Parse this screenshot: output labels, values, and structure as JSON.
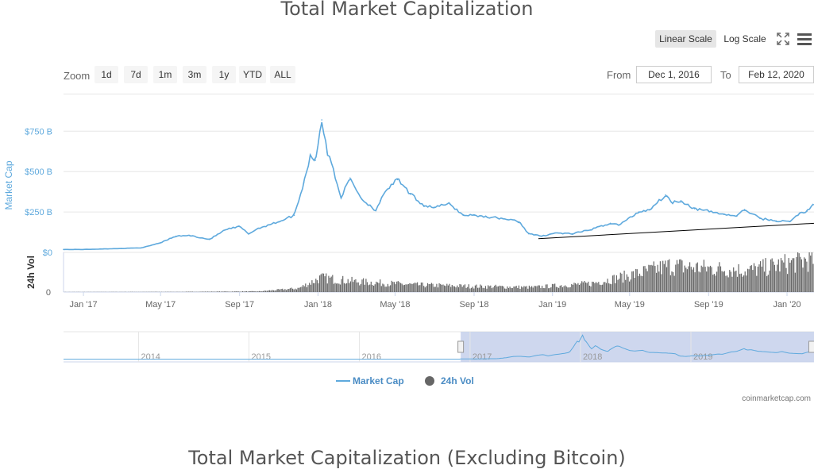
{
  "title": "Total Market Capitalization",
  "subtitle_next_chart": "Total Market Capitalization (Excluding Bitcoin)",
  "scale_buttons": {
    "linear": "Linear Scale",
    "log": "Log Scale",
    "active": "linear"
  },
  "zoom": {
    "label": "Zoom",
    "buttons": [
      "1d",
      "7d",
      "1m",
      "3m",
      "1y",
      "YTD",
      "ALL"
    ]
  },
  "range": {
    "from_label": "From",
    "from_value": "Dec 1, 2016",
    "to_label": "To",
    "to_value": "Feb 12, 2020"
  },
  "icons": {
    "fullscreen": "fullscreen-icon",
    "menu": "hamburger-menu-icon"
  },
  "credit": "coinmarketcap.com",
  "colors": {
    "market_cap": "#5ea9dd",
    "volume": "#666666",
    "navigator_fill": "#c5d0eb",
    "title": "#555555",
    "trendline": "#000000"
  },
  "chart_data": {
    "type": "line",
    "title": "Total Market Capitalization",
    "x_axis": {
      "labels": [
        "Jan '17",
        "May '17",
        "Sep '17",
        "Jan '18",
        "May '18",
        "Sep '18",
        "Jan '19",
        "May '19",
        "Sep '19",
        "Jan '20"
      ],
      "range": [
        "2016-12-01",
        "2020-02-12"
      ]
    },
    "y_axis": {
      "label": "Market Cap",
      "tick_labels": [
        "$0",
        "$250 B",
        "$500 B",
        "$750 B"
      ],
      "ticks": [
        0,
        250,
        500,
        750
      ],
      "unit": "billion USD",
      "ylim": [
        0,
        830
      ]
    },
    "volume_axis": {
      "label": "24h Vol",
      "tick_labels": [
        "0"
      ]
    },
    "legend": [
      "Market Cap",
      "24h Vol"
    ],
    "series": [
      {
        "name": "Market Cap",
        "x": [
          "2016-12-01",
          "2017-01-01",
          "2017-02-01",
          "2017-03-01",
          "2017-04-01",
          "2017-05-01",
          "2017-05-25",
          "2017-06-15",
          "2017-07-16",
          "2017-08-10",
          "2017-09-01",
          "2017-09-15",
          "2017-10-01",
          "2017-11-01",
          "2017-11-25",
          "2017-12-10",
          "2017-12-20",
          "2017-12-28",
          "2018-01-07",
          "2018-01-15",
          "2018-01-20",
          "2018-02-06",
          "2018-02-20",
          "2018-03-10",
          "2018-04-01",
          "2018-04-08",
          "2018-04-25",
          "2018-05-05",
          "2018-05-25",
          "2018-06-15",
          "2018-07-01",
          "2018-07-25",
          "2018-08-15",
          "2018-09-01",
          "2018-09-20",
          "2018-10-15",
          "2018-11-10",
          "2018-11-25",
          "2018-12-15",
          "2019-01-05",
          "2019-02-01",
          "2019-03-01",
          "2019-04-01",
          "2019-04-15",
          "2019-05-15",
          "2019-06-01",
          "2019-06-26",
          "2019-07-05",
          "2019-07-20",
          "2019-08-10",
          "2019-09-01",
          "2019-09-25",
          "2019-10-15",
          "2019-10-27",
          "2019-11-20",
          "2019-12-15",
          "2020-01-05",
          "2020-01-20",
          "2020-02-01",
          "2020-02-12"
        ],
        "values": [
          18,
          18,
          21,
          24,
          28,
          60,
          100,
          105,
          80,
          140,
          160,
          115,
          150,
          190,
          230,
          430,
          600,
          570,
          820,
          620,
          580,
          340,
          460,
          330,
          260,
          320,
          420,
          450,
          360,
          290,
          280,
          300,
          230,
          230,
          220,
          210,
          190,
          115,
          100,
          120,
          115,
          140,
          180,
          170,
          250,
          265,
          355,
          310,
          320,
          270,
          255,
          235,
          225,
          265,
          210,
          195,
          190,
          240,
          255,
          295
        ]
      },
      {
        "name": "24h Vol",
        "x": [
          "2016-12-01",
          "2017-06-01",
          "2017-10-01",
          "2017-12-01",
          "2018-01-05",
          "2018-03-01",
          "2018-06-01",
          "2018-09-01",
          "2018-12-01",
          "2019-03-01",
          "2019-05-01",
          "2019-07-01",
          "2019-09-01",
          "2019-11-01",
          "2020-01-01",
          "2020-02-12"
        ],
        "values": [
          0.2,
          0.5,
          1.5,
          8,
          30,
          22,
          15,
          12,
          10,
          18,
          35,
          55,
          50,
          45,
          60,
          70
        ]
      }
    ],
    "annotations": [
      {
        "type": "trendline",
        "from": [
          "2018-12-10",
          85
        ],
        "to": [
          "2020-02-12",
          180
        ]
      }
    ],
    "navigator": {
      "labels": [
        "2014",
        "2015",
        "2016",
        "2017",
        "2018",
        "2019"
      ],
      "selected_range": [
        "2016-12-01",
        "2020-02-12"
      ]
    },
    "grid": true
  }
}
